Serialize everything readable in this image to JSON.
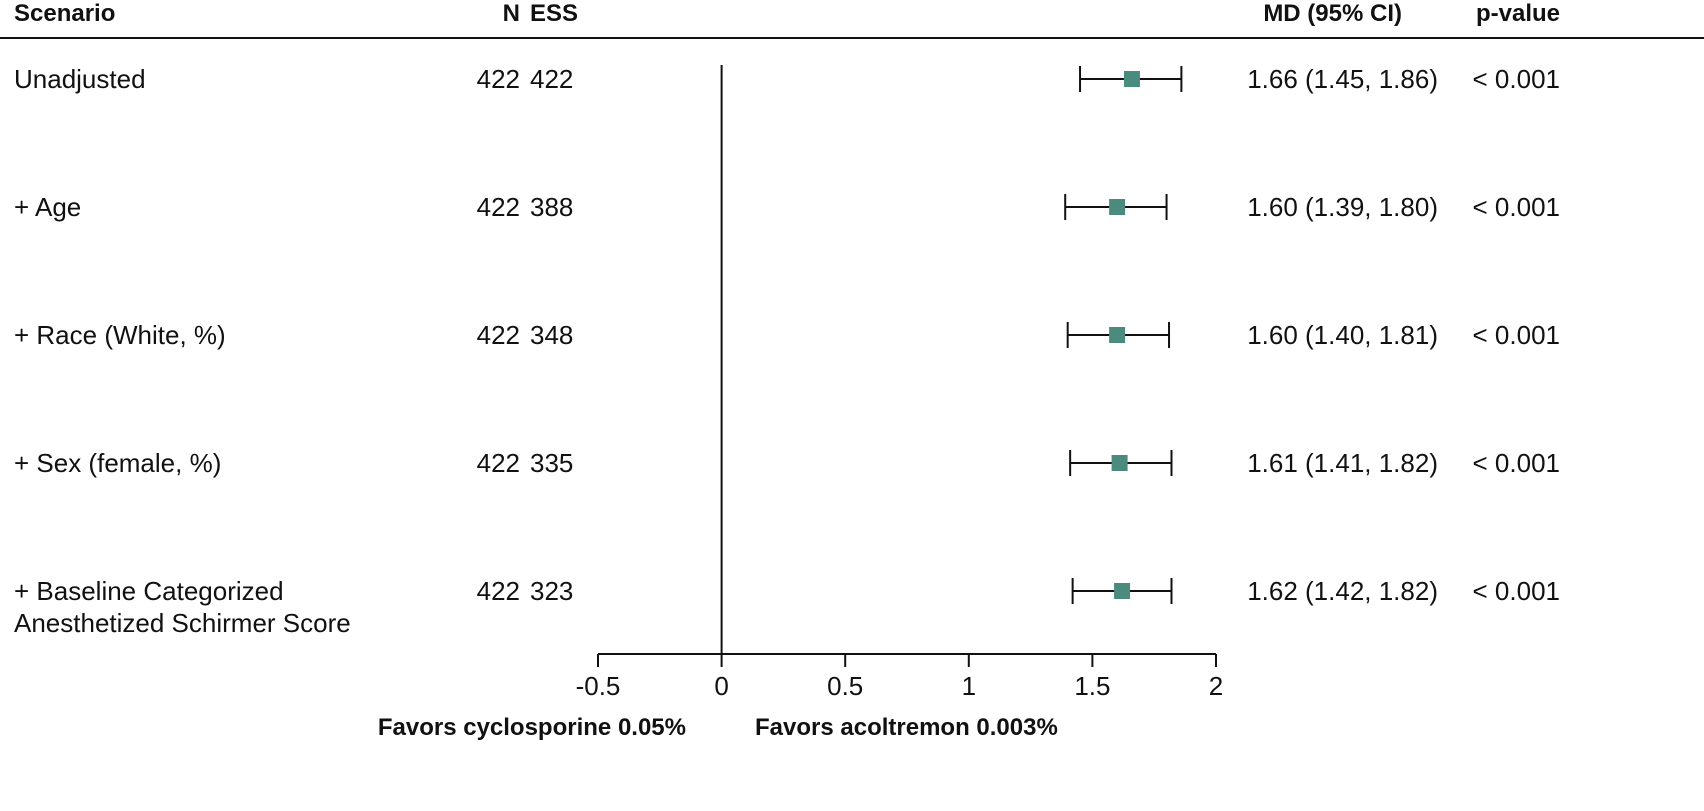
{
  "chart_data": {
    "type": "forest",
    "headers": {
      "label": "Scenario",
      "n": "N",
      "ess": "ESS",
      "estimate": "MD (95% CI)",
      "p": "p-value"
    },
    "categories": [
      "Unadjusted",
      "+ Age",
      "+ Race (White, %)",
      "+ Sex (female, %)",
      "+ Baseline Categorized Anesthetized Schirmer Score"
    ],
    "n": [
      422,
      422,
      422,
      422,
      422
    ],
    "ess": [
      422,
      388,
      348,
      335,
      323
    ],
    "values": [
      1.66,
      1.6,
      1.6,
      1.61,
      1.62
    ],
    "ci_low": [
      1.45,
      1.39,
      1.4,
      1.41,
      1.42
    ],
    "ci_high": [
      1.86,
      1.8,
      1.81,
      1.82,
      1.82
    ],
    "value_labels": [
      "1.66 (1.45, 1.86)",
      "1.60 (1.39, 1.80)",
      "1.60 (1.40, 1.81)",
      "1.61 (1.41, 1.82)",
      "1.62 (1.42, 1.82)"
    ],
    "p_labels": [
      "< 0.001",
      "< 0.001",
      "< 0.001",
      "< 0.001",
      "< 0.001"
    ],
    "color": "#4a8b7d",
    "xlim": [
      -0.5,
      2
    ],
    "xticks": [
      -0.5,
      0,
      0.5,
      1,
      1.5,
      2
    ],
    "reference": 0,
    "left_label": "Favors cyclosporine 0.05%",
    "right_label": "Favors acoltremon 0.003%"
  }
}
